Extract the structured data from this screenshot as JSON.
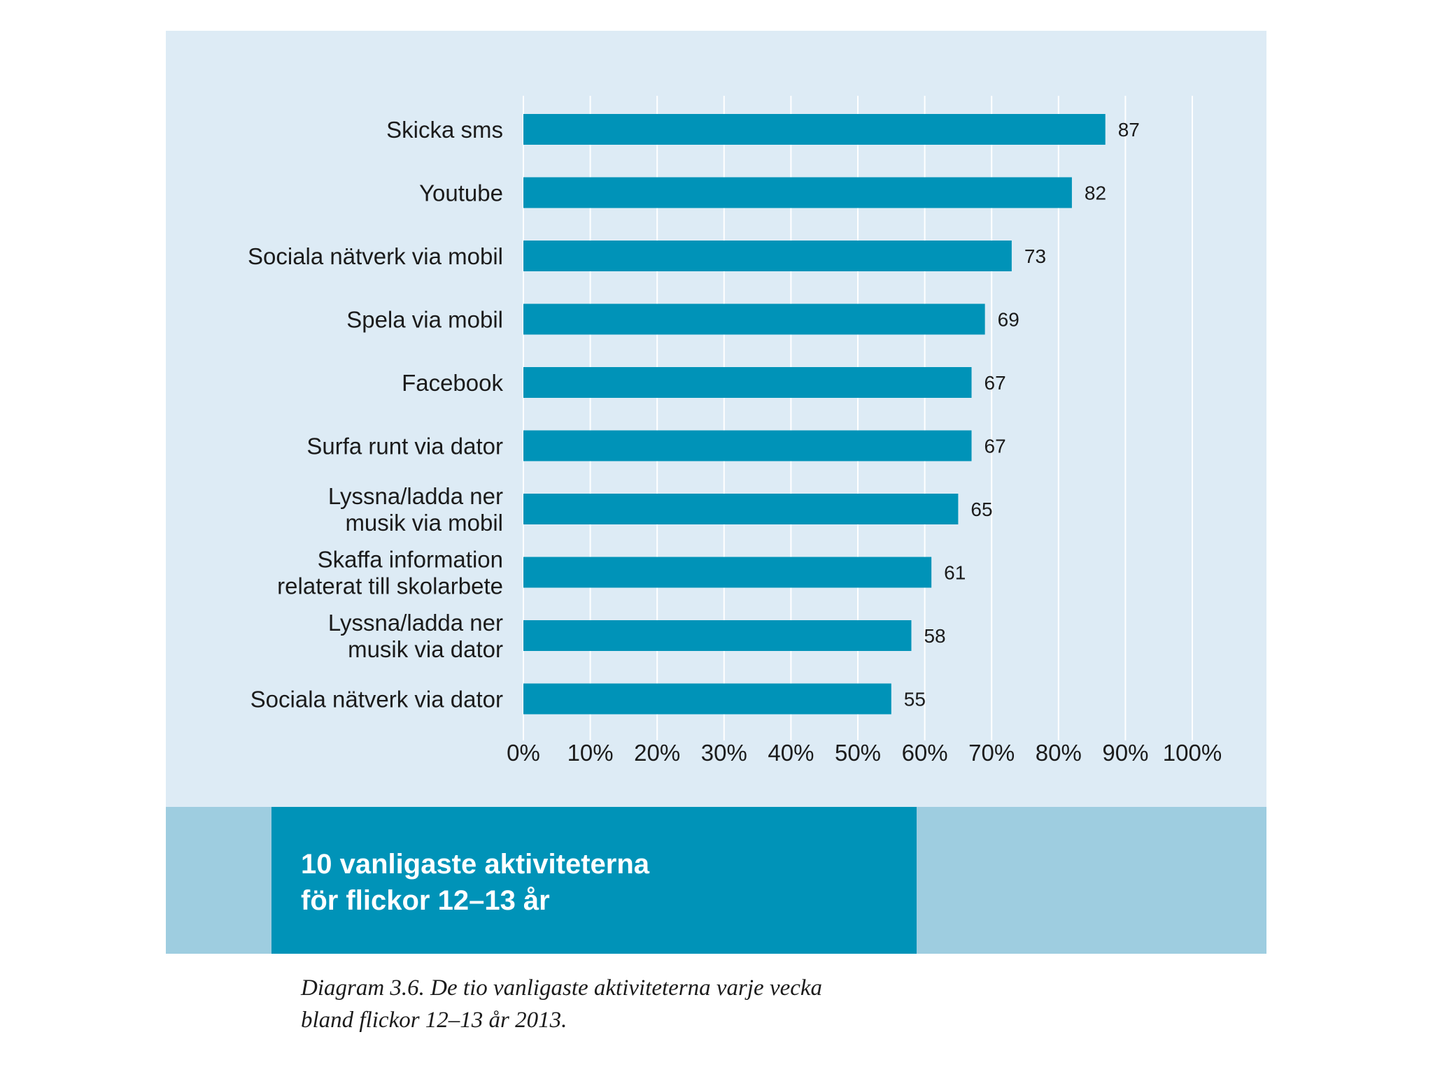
{
  "chart_data": {
    "type": "bar",
    "orientation": "horizontal",
    "categories": [
      "Skicka sms",
      "Youtube",
      "Sociala nätverk via mobil",
      "Spela via mobil",
      "Facebook",
      "Surfa runt via dator",
      "Lyssna/ladda ner\nmusik via mobil",
      "Skaffa information\nrelaterat till skolarbete",
      "Lyssna/ladda ner\nmusik via dator",
      "Sociala nätverk via dator"
    ],
    "values": [
      87,
      82,
      73,
      69,
      67,
      67,
      65,
      61,
      58,
      55
    ],
    "value_labels": [
      "87",
      "82",
      "73",
      "69",
      "67",
      "67",
      "65",
      "61",
      "58",
      "55"
    ],
    "x_ticks": [
      "0%",
      "10%",
      "20%",
      "30%",
      "40%",
      "50%",
      "60%",
      "70%",
      "80%",
      "90%",
      "100%"
    ],
    "xlim": [
      0,
      100
    ],
    "grid": "vertical",
    "bar_color": "#0093b8",
    "title": "10 vanligaste aktiviteterna\nför flickor 12–13 år"
  },
  "caption": "Diagram 3.6. De tio vanligaste aktiviteterna varje vecka\nbland flickor 12–13 år 2013.",
  "colors": {
    "panel_background": "#ddebf5",
    "banner_light": "#9ecde0",
    "banner_dark": "#0093b8",
    "gridline": "#ffffff"
  }
}
